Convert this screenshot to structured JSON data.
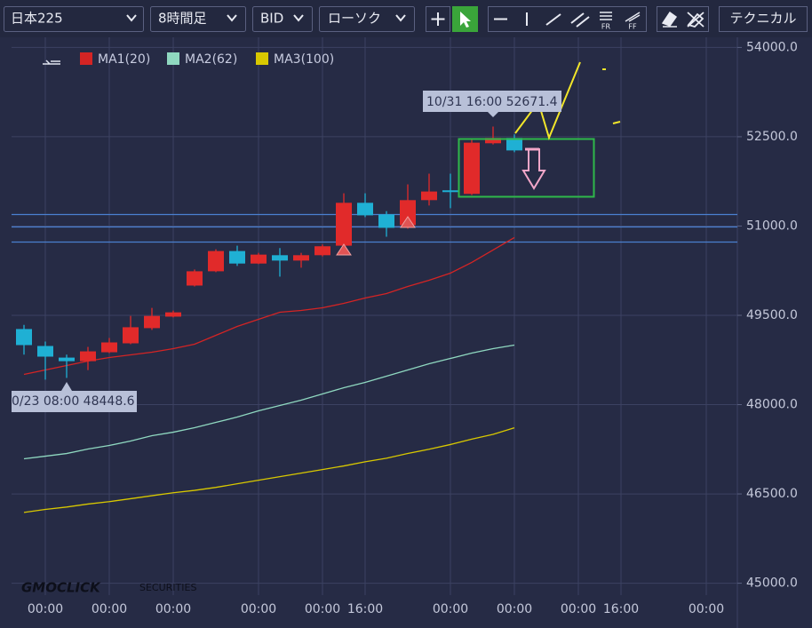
{
  "toolbar": {
    "symbol": "日本225",
    "timeframe": "8時間足",
    "price_type": "BID",
    "chart_style": "ローソク",
    "fr_icon": "FR",
    "ff_icon": "FF",
    "technical": "テクニカル"
  },
  "chart_data": {
    "type": "candlestick",
    "categories": [
      null,
      "00:00",
      null,
      null,
      "00:00",
      null,
      null,
      "00:00",
      null,
      null,
      null,
      "00:00",
      null,
      null,
      "00:00",
      null,
      "16:00",
      null,
      null,
      null,
      "00:00",
      null,
      null,
      "00:00",
      null,
      null,
      "00:00",
      null,
      "16:00",
      null,
      null,
      null,
      "00:00"
    ],
    "open": [
      49270,
      48985,
      48790,
      48730,
      48880,
      49030,
      49285,
      49478,
      50000,
      50240,
      50580,
      50370,
      50510,
      50420,
      50510,
      50670,
      51390,
      51195,
      51015,
      51435,
      51600,
      51540,
      52390,
      52480,
      null,
      null,
      null,
      null,
      null,
      null,
      null,
      null,
      null
    ],
    "high": [
      49340,
      49060,
      48840,
      48970,
      49120,
      49490,
      49625,
      49580,
      50270,
      50610,
      50670,
      50550,
      50630,
      50550,
      50690,
      51550,
      51550,
      51250,
      51700,
      51880,
      51880,
      52450,
      52671.4,
      52540,
      null,
      null,
      null,
      null,
      null,
      null,
      null,
      null,
      null
    ],
    "low": [
      48840,
      48420,
      48448.6,
      48580,
      48865,
      49015,
      49255,
      49465,
      49985,
      50225,
      50330,
      50360,
      50150,
      50300,
      50490,
      50655,
      51150,
      50820,
      50955,
      51345,
      51300,
      51520,
      52370,
      52240,
      null,
      null,
      null,
      null,
      null,
      null,
      null,
      null,
      null
    ],
    "close": [
      49000,
      48806,
      48730,
      48895,
      49045,
      49300,
      49490,
      49550,
      50240,
      50580,
      50370,
      50520,
      50420,
      50510,
      50660,
      51390,
      51180,
      50970,
      51435,
      51580,
      51570,
      52400,
      52480,
      52270,
      null,
      null,
      null,
      null,
      null,
      null,
      null,
      null,
      null
    ],
    "up_color": "#e12a2a",
    "down_color": "#1fb0d4",
    "series": [
      {
        "name": "MA1(20)",
        "color": "#d42424",
        "values": [
          48508,
          48583,
          48657,
          48732,
          48791,
          48836,
          48881,
          48940,
          49015,
          49164,
          49313,
          49433,
          49552,
          49582,
          49627,
          49701,
          49791,
          49866,
          49985,
          50090,
          50209,
          50388,
          50597,
          50806,
          null,
          null,
          null,
          null,
          null,
          null,
          null,
          null,
          null
        ]
      },
      {
        "name": "MA2(62)",
        "color": "#8fd8c0",
        "values": [
          47090,
          47134,
          47179,
          47254,
          47314,
          47388,
          47478,
          47537,
          47612,
          47702,
          47791,
          47896,
          47985,
          48075,
          48179,
          48284,
          48373,
          48478,
          48582,
          48687,
          48776,
          48866,
          48940,
          49000,
          null,
          null,
          null,
          null,
          null,
          null,
          null,
          null,
          null
        ]
      },
      {
        "name": "MA3(100)",
        "color": "#d8c800",
        "values": [
          46190,
          46240,
          46280,
          46330,
          46370,
          46420,
          46470,
          46520,
          46560,
          46610,
          46670,
          46730,
          46790,
          46850,
          46910,
          46970,
          47040,
          47100,
          47180,
          47250,
          47330,
          47420,
          47500,
          47610,
          null,
          null,
          null,
          null,
          null,
          null,
          null,
          null,
          null
        ]
      }
    ],
    "ylim": [
      44800,
      54200
    ],
    "yticks": [
      {
        "value": 45000,
        "label": "45000.0"
      },
      {
        "value": 46500,
        "label": "46500.0"
      },
      {
        "value": 48000,
        "label": "48000.0"
      },
      {
        "value": 49500,
        "label": "49500.0"
      },
      {
        "value": 51000,
        "label": "51000.0"
      },
      {
        "value": 52500,
        "label": "52500.0"
      },
      {
        "value": 54000,
        "label": "54000.0"
      }
    ],
    "grid": true,
    "hlines": [
      51194,
      50985,
      50731
    ],
    "annotations": [
      "10/31 16:00 52671.4",
      "0/23 08:00 48448.6"
    ],
    "watermark": {
      "brand": "GMOCLICK",
      "sub": "SECURITIES"
    }
  }
}
